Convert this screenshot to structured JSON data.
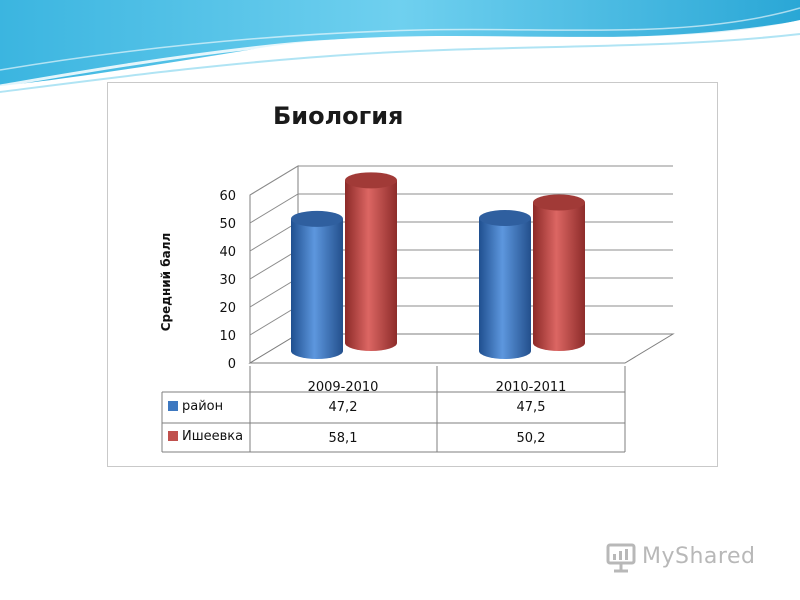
{
  "colors": {
    "raion": "#3d78c0",
    "isheevka": "#c0504d"
  },
  "watermark": {
    "text": "MyShared"
  },
  "chart_data": {
    "type": "bar",
    "title": "Биология",
    "xlabel": "",
    "ylabel": "Средний балл",
    "ylim": [
      0,
      60
    ],
    "yticks": [
      "0",
      "10",
      "20",
      "30",
      "40",
      "50",
      "60"
    ],
    "grid": true,
    "legend": "table-left",
    "categories": [
      "2009-2010",
      "2010-2011"
    ],
    "series": [
      {
        "name": "район",
        "values": [
          47.2,
          47.5
        ],
        "labels": [
          "47,2",
          "47,5"
        ]
      },
      {
        "name": "Ишеевка",
        "values": [
          58.1,
          50.2
        ],
        "labels": [
          "58,1",
          "50,2"
        ]
      }
    ]
  }
}
